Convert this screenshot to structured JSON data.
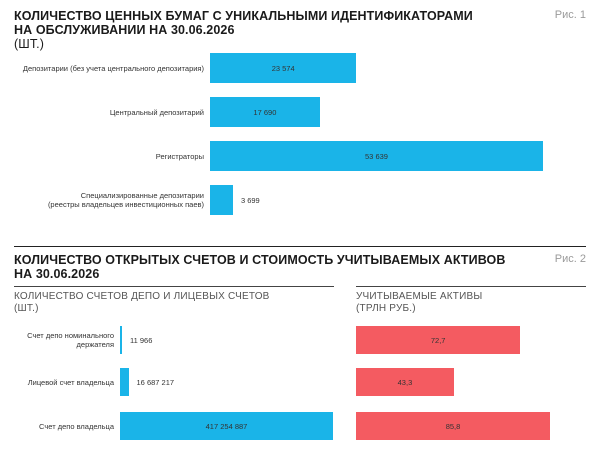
{
  "figure1": {
    "title_lines": [
      "КОЛИЧЕСТВО ЦЕННЫХ БУМАГ С УНИКАЛЬНЫМИ ИДЕНТИФИКАТОРАМИ",
      "НА ОБСЛУЖИВАНИИ НА 30.06.2026",
      "(ШТ.)"
    ],
    "fig_label": "Рис. 1"
  },
  "figure2": {
    "title_lines": [
      "КОЛИЧЕСТВО ОТКРЫТЫХ СЧЕТОВ И СТОИМОСТЬ УЧИТЫВАЕМЫХ АКТИВОВ",
      "НА 30.06.2026"
    ],
    "fig_label": "Рис. 2",
    "left_subtitle_lines": [
      "КОЛИЧЕСТВО СЧЕТОВ ДЕПО И ЛИЦЕВЫХ СЧЕТОВ",
      "(ШТ.)"
    ],
    "right_subtitle_lines": [
      "УЧИТЫВАЕМЫЕ АКТИВЫ",
      "(ТРЛН РУБ.)"
    ]
  },
  "chart_data": [
    {
      "type": "bar",
      "orientation": "horizontal",
      "title": "КОЛИЧЕСТВО ЦЕННЫХ БУМАГ С УНИКАЛЬНЫМИ ИДЕНТИФИКАТОРАМИ НА ОБСЛУЖИВАНИИ НА 30.06.2026 (ШТ.)",
      "categories": [
        [
          "Депозитарии (без учета центрального депозитария)"
        ],
        [
          "Центральный депозитарий"
        ],
        [
          "Регистраторы"
        ],
        [
          "Специализированные депозитарии",
          "(реестры владельцев инвестиционных паев)"
        ]
      ],
      "values": [
        23574,
        17690,
        53639,
        3699
      ],
      "value_labels": [
        "23 574",
        "17 690",
        "53 639",
        "3 699"
      ],
      "color": "#1ab4e8",
      "xlim": [
        0,
        53639
      ],
      "grid": false
    },
    {
      "type": "bar",
      "orientation": "horizontal",
      "title": "КОЛИЧЕСТВО СЧЕТОВ ДЕПО И ЛИЦЕВЫХ СЧЕТОВ (ШТ.)",
      "categories": [
        [
          "Счет депо номинального",
          "держателя"
        ],
        [
          "Лицевой счет владельца"
        ],
        [
          "Счет депо владельца"
        ]
      ],
      "values": [
        11966,
        16687217,
        417254887
      ],
      "value_labels": [
        "11 966",
        "16 687 217",
        "417 254 887"
      ],
      "color": "#1ab4e8",
      "xlim": [
        0,
        417254887
      ],
      "grid": false
    },
    {
      "type": "bar",
      "orientation": "horizontal",
      "title": "УЧИТЫВАЕМЫЕ АКТИВЫ (ТРЛН РУБ.)",
      "categories": [
        "Счет депо номинального держателя",
        "Лицевой счет владельца",
        "Счет депо владельца"
      ],
      "values": [
        72.7,
        43.3,
        85.8
      ],
      "value_labels": [
        "72,7",
        "43,3",
        "85,8"
      ],
      "color": "#f45b61",
      "xlim": [
        0,
        85.8
      ],
      "grid": false
    }
  ]
}
